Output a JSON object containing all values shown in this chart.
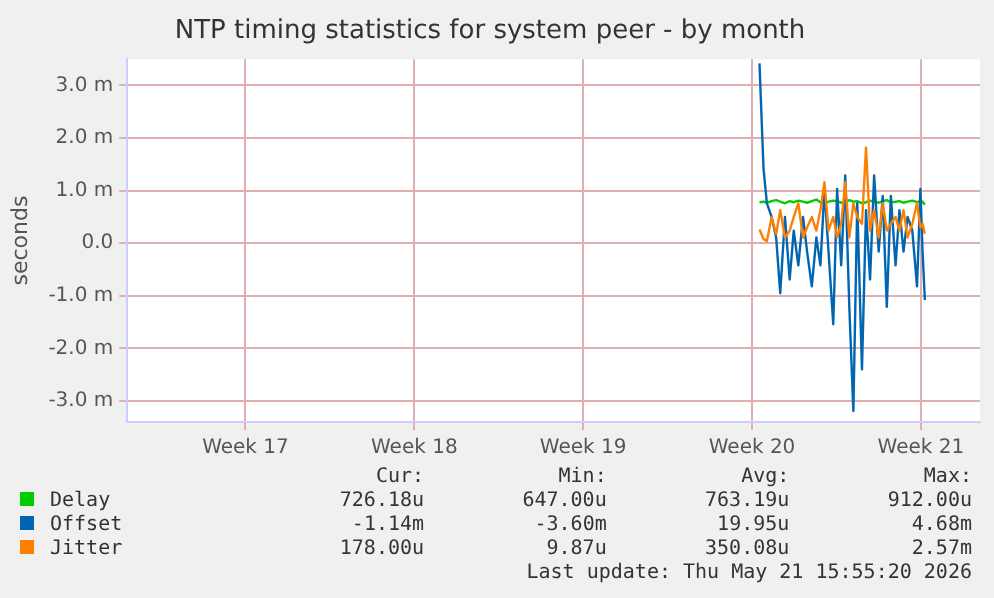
{
  "chart_data": {
    "type": "line",
    "title": "NTP timing statistics for system peer - by month",
    "ylabel": "seconds",
    "x": [
      "2026-05-14T19:24",
      "2026-05-14T23:25",
      "2026-05-15T02:47",
      "2026-05-15T07:29",
      "2026-05-15T12:00",
      "2026-05-15T16:03",
      "2026-05-15T20:46",
      "2026-05-16T01:27",
      "2026-05-16T05:30",
      "2026-05-16T10:02",
      "2026-05-16T14:44",
      "2026-05-16T18:46",
      "2026-05-16T23:28",
      "2026-05-17T04:00",
      "2026-05-17T08:02",
      "2026-05-17T12:04",
      "2026-05-17T16:06",
      "2026-05-17T20:48",
      "2026-05-18T00:40",
      "2026-05-18T04:42",
      "2026-05-18T08:44",
      "2026-05-18T12:46",
      "2026-05-18T16:48",
      "2026-05-18T20:40",
      "2026-05-19T01:22",
      "2026-05-19T05:24",
      "2026-05-19T09:26",
      "2026-05-19T13:28",
      "2026-05-19T18:00",
      "2026-05-19T22:02",
      "2026-05-20T02:04",
      "2026-05-20T06:06",
      "2026-05-20T10:48",
      "2026-05-20T14:40",
      "2026-05-20T18:42",
      "2026-05-20T22:44",
      "2026-05-21T03:26",
      "2026-05-21T08:08",
      "2026-05-21T11:30",
      "2026-05-21T13:40",
      "2026-05-21T15:55"
    ],
    "series": [
      {
        "name": "Delay",
        "color": "#00cc00",
        "values": [
          0.78,
          0.79,
          0.77,
          0.8,
          0.82,
          0.79,
          0.76,
          0.8,
          0.78,
          0.81,
          0.79,
          0.77,
          0.8,
          0.83,
          0.78,
          0.76,
          0.79,
          0.81,
          0.8,
          0.77,
          0.78,
          0.82,
          0.79,
          0.8,
          0.76,
          0.78,
          0.81,
          0.79,
          0.77,
          0.8,
          0.82,
          0.78,
          0.79,
          0.8,
          0.77,
          0.79,
          0.81,
          0.78,
          0.8,
          0.79,
          0.73
        ]
      },
      {
        "name": "Offset",
        "color": "#0066b3",
        "values": [
          3.42,
          1.42,
          0.76,
          0.5,
          0.11,
          -0.95,
          0.5,
          -0.69,
          0.24,
          -0.42,
          0.5,
          -0.16,
          -0.82,
          0.11,
          -0.42,
          1.03,
          -0.16,
          -1.54,
          1.03,
          -0.42,
          1.29,
          -1.21,
          -3.19,
          0.76,
          -2.4,
          0.63,
          -0.69,
          1.29,
          -0.16,
          0.9,
          -1.21,
          0.9,
          -0.42,
          0.63,
          -0.16,
          0.5,
          0.24,
          -0.82,
          1.03,
          -0.16,
          -1.08
        ]
      },
      {
        "name": "Jitter",
        "color": "#ff8000",
        "values": [
          0.26,
          0.08,
          0.04,
          0.5,
          0.17,
          0.63,
          0.11,
          0.24,
          0.5,
          0.76,
          0.11,
          0.3,
          0.5,
          0.24,
          0.63,
          1.16,
          0.24,
          0.5,
          0.11,
          0.37,
          1.16,
          0.11,
          0.76,
          0.5,
          0.37,
          1.82,
          0.24,
          0.63,
          0.11,
          0.76,
          0.24,
          0.37,
          0.5,
          0.24,
          0.63,
          0.11,
          0.37,
          0.76,
          0.3,
          0.37,
          0.18
        ]
      }
    ],
    "xlim": [
      "2026-04-18T14:24",
      "2026-05-23T22:48"
    ],
    "xticks": [
      {
        "value": "2026-04-23T12:00",
        "label": "Week 17"
      },
      {
        "value": "2026-04-30T12:00",
        "label": "Week 18"
      },
      {
        "value": "2026-05-07T12:00",
        "label": "Week 19"
      },
      {
        "value": "2026-05-14T12:00",
        "label": "Week 20"
      },
      {
        "value": "2026-05-21T12:00",
        "label": "Week 21"
      }
    ],
    "ylim": [
      -3.4,
      3.5
    ],
    "yticks": [
      {
        "value": -3,
        "label": "-3.0 m"
      },
      {
        "value": -2,
        "label": "-2.0 m"
      },
      {
        "value": -1,
        "label": "-1.0 m"
      },
      {
        "value": 0,
        "label": "0.0"
      },
      {
        "value": 1,
        "label": "1.0 m"
      },
      {
        "value": 2,
        "label": "2.0 m"
      },
      {
        "value": 3,
        "label": "3.0 m"
      }
    ],
    "grid": true,
    "legend": "bottom",
    "marker": "none",
    "line_style": "solid",
    "annotations": [
      "Cur:",
      "Min:",
      "Avg:",
      "Max:",
      "726.18u",
      "647.00u",
      "763.19u",
      "912.00u",
      "-1.14m",
      "-3.60m",
      "19.95u",
      "4.68m",
      "178.00u",
      "9.87u",
      "350.08u",
      "2.57m",
      "Last update: Thu May 21 15:55:20 2026"
    ]
  }
}
